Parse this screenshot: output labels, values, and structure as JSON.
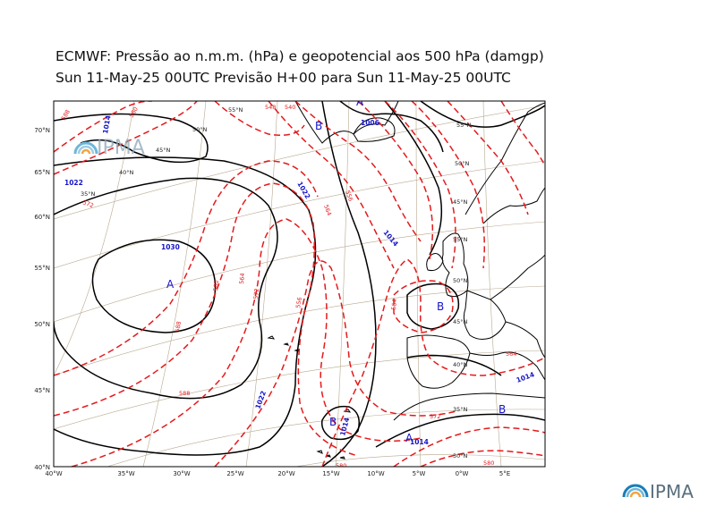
{
  "header": {
    "title_line1": "ECMWF:  Pressão ao n.m.m. (hPa) e geopotencial aos 500 hPa (damgp)",
    "title_line2": "Sun 11-May-25 00UTC Previsão H+00 para Sun 11-May-25 00UTC"
  },
  "map": {
    "lat_ticks_left": [
      "70°N",
      "65°N",
      "60°N",
      "55°N",
      "50°N",
      "45°N",
      "40°N"
    ],
    "lon_ticks_bottom": [
      "40°W",
      "35°W",
      "30°W",
      "25°W",
      "20°W",
      "15°W",
      "10°W",
      "5°W",
      "0°W",
      "5°E"
    ],
    "grid_lat_labels": [
      "55°N",
      "50°N",
      "45°N",
      "40°N",
      "35°N",
      "30°N"
    ],
    "grid_lat_labels_west": [
      "55°N",
      "50°N",
      "45°N",
      "40°N",
      "35°N"
    ],
    "pressure_labels": [
      "1030",
      "1022",
      "1022",
      "1022",
      "1014",
      "1014",
      "1014",
      "1014",
      "1006",
      "1014"
    ],
    "geopotential_labels": [
      "588",
      "580",
      "572",
      "564",
      "556",
      "548",
      "540",
      "556",
      "564",
      "572",
      "580",
      "588",
      "572",
      "580",
      "564",
      "588",
      "564",
      "580"
    ],
    "centers": [
      {
        "type": "A"
      },
      {
        "type": "A"
      },
      {
        "type": "A"
      },
      {
        "type": "B"
      },
      {
        "type": "B"
      },
      {
        "type": "B"
      },
      {
        "type": "B"
      }
    ],
    "colors": {
      "isobar": "#000000",
      "geopotential": "#e41a1c",
      "grid": "#b8a98f",
      "coast": "#000000",
      "label_blue": "#1515c8"
    }
  },
  "logos": {
    "inset": "IPMA",
    "corner": "IPMA"
  }
}
